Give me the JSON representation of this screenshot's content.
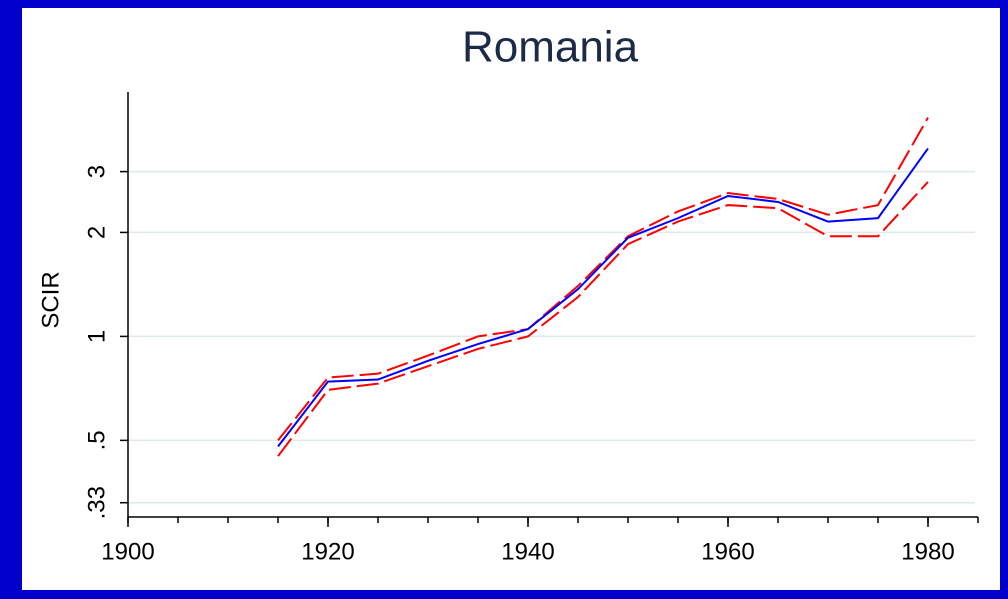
{
  "chart_data": {
    "type": "line",
    "title": "Romania",
    "y_label": "SCIR",
    "x": [
      1915,
      1920,
      1925,
      1930,
      1935,
      1940,
      1945,
      1950,
      1955,
      1960,
      1965,
      1970,
      1975,
      1980
    ],
    "series": [
      {
        "color": "#ff0000",
        "dashed": true,
        "values": [
          0.5,
          0.76,
          0.78,
          0.88,
          1.0,
          1.05,
          1.4,
          1.95,
          2.3,
          2.6,
          2.5,
          2.25,
          2.4,
          4.3
        ]
      },
      {
        "color": "#ff0000",
        "dashed": true,
        "values": [
          0.45,
          0.7,
          0.73,
          0.82,
          0.92,
          1.0,
          1.3,
          1.85,
          2.15,
          2.4,
          2.35,
          1.95,
          1.95,
          2.8
        ]
      },
      {
        "color": "#0000ff",
        "dashed": false,
        "values": [
          0.48,
          0.74,
          0.75,
          0.85,
          0.95,
          1.05,
          1.37,
          1.93,
          2.2,
          2.55,
          2.45,
          2.15,
          2.2,
          3.5
        ]
      }
    ],
    "xlim": [
      1900,
      1985
    ],
    "xticks": [
      1900,
      1920,
      1940,
      1960,
      1980
    ],
    "xminor_step": 5,
    "ylim": [
      0.3,
      5.1
    ],
    "yticks": [
      {
        "value": 0.33,
        "label": ".33"
      },
      {
        "value": 0.5,
        "label": ".5"
      },
      1,
      2,
      3
    ],
    "log_y": true,
    "grid": true
  }
}
